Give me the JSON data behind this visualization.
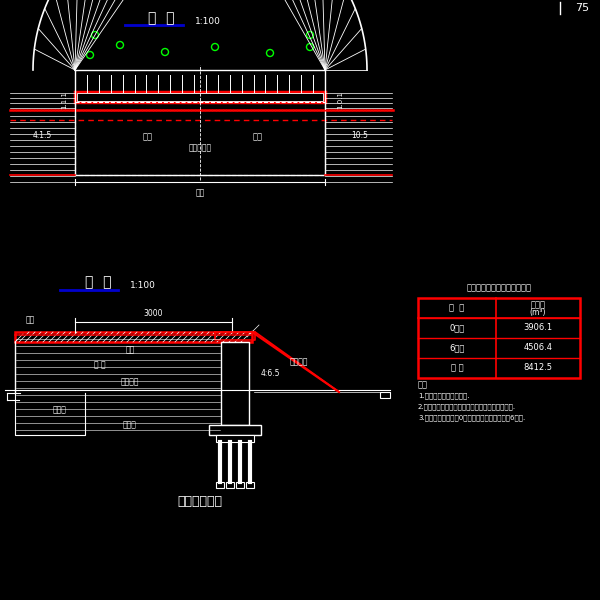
{
  "bg_color": "#000000",
  "line_color": "#ffffff",
  "red_color": "#ff0000",
  "green_color": "#00ff00",
  "blue_color": "#0000cd",
  "title_plan": "平  面",
  "title_plan_sub": "1:100",
  "title_elev": "立  面",
  "title_elev_sub": "1:100",
  "page_num": "75",
  "bottom_title": "台后填土示意",
  "table_title": "全断桥台台后填土工程数量表",
  "table_headers": [
    "单  项",
    "填土量\n(m³)"
  ],
  "table_rows": [
    [
      "0号台",
      "3906.1"
    ],
    [
      "6号台",
      "4506.4"
    ],
    [
      "合 计",
      "8412.5"
    ]
  ],
  "notes_title": "注：",
  "notes": [
    "1.图中尺寸以毫米为单位.",
    "2.台后填土采用砂砾土，压实度要求道路规范以上.",
    "3.桥带填数字适用于0号台，桥号为虚线适用于6号台."
  ]
}
